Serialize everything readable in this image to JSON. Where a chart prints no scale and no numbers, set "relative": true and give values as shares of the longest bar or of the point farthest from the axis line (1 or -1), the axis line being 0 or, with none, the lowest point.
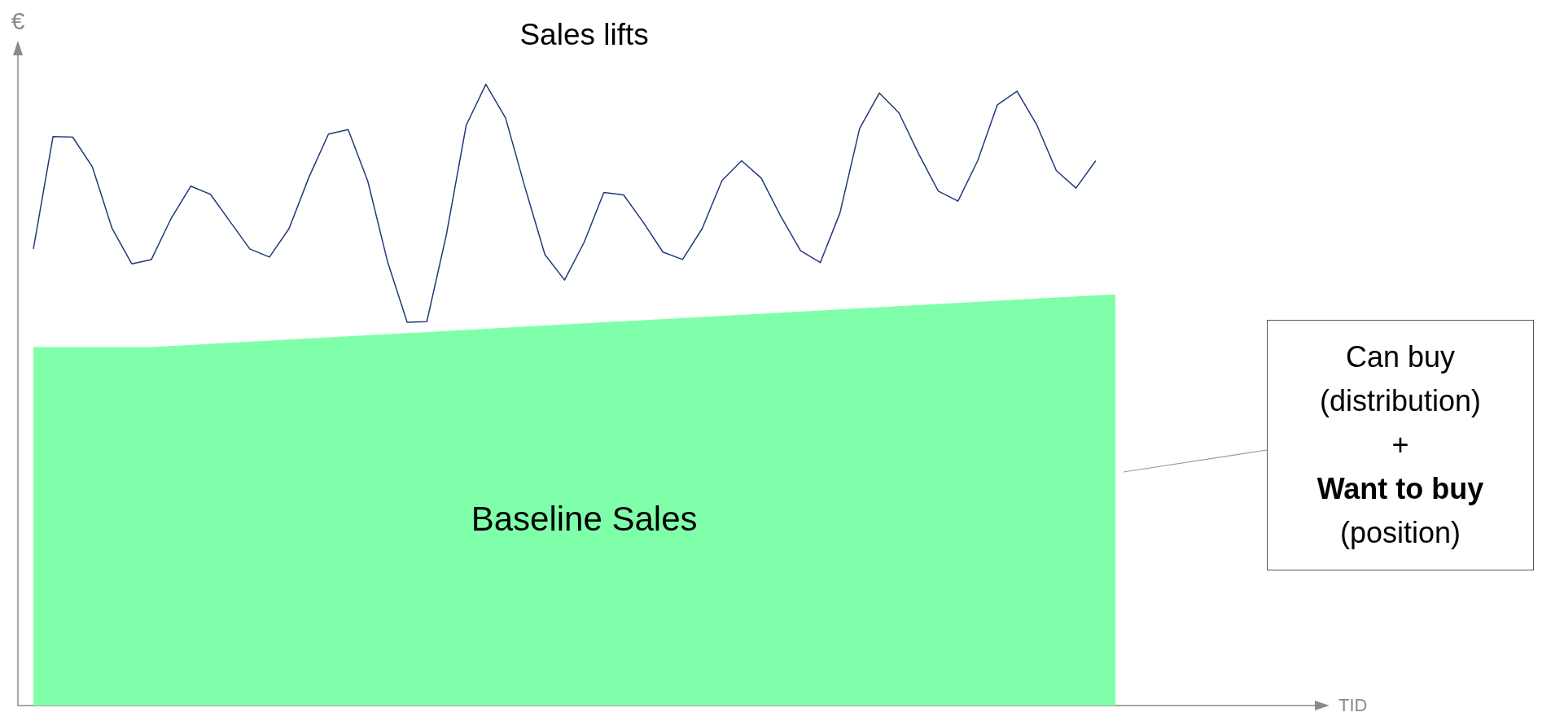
{
  "chart_data": {
    "type": "line",
    "relative": true,
    "ylabel": "€",
    "categories": [
      null,
      null,
      null,
      null,
      null,
      null,
      null,
      null,
      null,
      null,
      null,
      null,
      null,
      null,
      null,
      null,
      null,
      null,
      null,
      null,
      null,
      null,
      null,
      null,
      null,
      null,
      null,
      null,
      null,
      null,
      null,
      null,
      null,
      null,
      null,
      null,
      null,
      null,
      null,
      null,
      null,
      null,
      null,
      null,
      null,
      null,
      null,
      null,
      null,
      null,
      null,
      null,
      null,
      null,
      null,
      null
    ],
    "grid": false,
    "legend": false,
    "marker": "none",
    "series": [
      {
        "name": "Baseline Sales",
        "type": "area",
        "color": "#80ffaa",
        "values": [
          0.577,
          null,
          null,
          null,
          null,
          null,
          0.577,
          null,
          null,
          null,
          null,
          null,
          null,
          null,
          null,
          null,
          null,
          null,
          null,
          null,
          null,
          null,
          null,
          null,
          null,
          null,
          null,
          null,
          null,
          null,
          null,
          null,
          null,
          null,
          null,
          null,
          null,
          null,
          null,
          null,
          null,
          null,
          null,
          null,
          null,
          null,
          null,
          null,
          null,
          null,
          null,
          null,
          null,
          null,
          null,
          0.662
        ]
      },
      {
        "name": "Sales lifts",
        "type": "line",
        "color": "#1f3a7a",
        "values": [
          0.735,
          0.916,
          0.915,
          0.867,
          0.768,
          0.711,
          0.718,
          0.784,
          0.836,
          0.823,
          0.779,
          0.735,
          0.722,
          0.768,
          0.85,
          0.92,
          0.927,
          0.844,
          0.715,
          0.617,
          0.618,
          0.759,
          0.934,
          1.0,
          0.946,
          0.833,
          0.726,
          0.685,
          0.746,
          0.826,
          0.822,
          0.778,
          0.73,
          0.718,
          0.768,
          0.845,
          0.877,
          0.849,
          0.787,
          0.732,
          0.713,
          0.793,
          0.929,
          0.986,
          0.954,
          0.888,
          0.828,
          0.812,
          0.877,
          0.967,
          0.989,
          0.935,
          0.861,
          0.833,
          0.877,
          null
        ]
      }
    ],
    "annotations": [
      "Can buy\n(distribution)\n+\nWant to buy\n(position)",
      "TID"
    ]
  }
}
